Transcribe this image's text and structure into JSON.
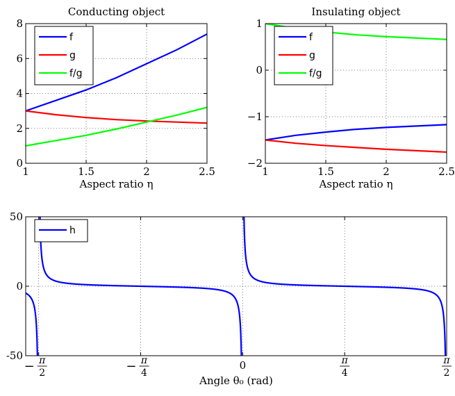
{
  "chart_data": [
    {
      "type": "line",
      "title": "Conducting object",
      "xlabel": "Aspect ratio η",
      "ylabel": "",
      "xlim": [
        1,
        2.5
      ],
      "ylim": [
        0,
        8
      ],
      "xticks": [
        1,
        1.5,
        2,
        2.5
      ],
      "xtick_labels": [
        "1",
        "1.5",
        "2",
        "2.5"
      ],
      "yticks": [
        0,
        2,
        4,
        6,
        8
      ],
      "ytick_labels": [
        "0",
        "2",
        "4",
        "6",
        "8"
      ],
      "grid": true,
      "legend_position": "top-left",
      "series": [
        {
          "name": "f",
          "color": "#0000ff",
          "x": [
            1,
            1.25,
            1.5,
            1.75,
            2,
            2.25,
            2.5
          ],
          "y": [
            3.0,
            3.6,
            4.2,
            4.9,
            5.7,
            6.5,
            7.4
          ]
        },
        {
          "name": "g",
          "color": "#ff0000",
          "x": [
            1,
            1.25,
            1.5,
            1.75,
            2,
            2.25,
            2.5
          ],
          "y": [
            3.0,
            2.78,
            2.62,
            2.5,
            2.42,
            2.36,
            2.3
          ]
        },
        {
          "name": "f/g",
          "color": "#00ff00",
          "x": [
            1,
            1.25,
            1.5,
            1.75,
            2,
            2.25,
            2.5
          ],
          "y": [
            1.0,
            1.3,
            1.6,
            1.96,
            2.36,
            2.76,
            3.2
          ]
        }
      ]
    },
    {
      "type": "line",
      "title": "Insulating object",
      "xlabel": "Aspect ratio η",
      "ylabel": "",
      "xlim": [
        1,
        2.5
      ],
      "ylim": [
        -2,
        1
      ],
      "xticks": [
        1,
        1.5,
        2,
        2.5
      ],
      "xtick_labels": [
        "1",
        "1.5",
        "2",
        "2.5"
      ],
      "yticks": [
        -2,
        -1,
        0,
        1
      ],
      "ytick_labels": [
        "−2",
        "−1",
        "0",
        "1"
      ],
      "grid": true,
      "legend_position": "top-left",
      "series": [
        {
          "name": "f",
          "color": "#0000ff",
          "x": [
            1,
            1.25,
            1.5,
            1.75,
            2,
            2.25,
            2.5
          ],
          "y": [
            -1.5,
            -1.4,
            -1.33,
            -1.27,
            -1.23,
            -1.2,
            -1.17
          ]
        },
        {
          "name": "g",
          "color": "#ff0000",
          "x": [
            1,
            1.25,
            1.5,
            1.75,
            2,
            2.25,
            2.5
          ],
          "y": [
            -1.5,
            -1.57,
            -1.62,
            -1.66,
            -1.7,
            -1.73,
            -1.76
          ]
        },
        {
          "name": "f/g",
          "color": "#00ff00",
          "x": [
            1,
            1.25,
            1.5,
            1.75,
            2,
            2.25,
            2.5
          ],
          "y": [
            1.0,
            0.9,
            0.82,
            0.76,
            0.72,
            0.69,
            0.66
          ]
        }
      ]
    },
    {
      "type": "line",
      "title": "",
      "xlabel": "Angle θ₀ (rad)",
      "ylabel": "",
      "xlim": [
        -1.6708,
        1.5708
      ],
      "ylim": [
        -50,
        50
      ],
      "xticks": [
        -1.5708,
        -0.7854,
        0,
        0.7854,
        1.5708
      ],
      "xtick_labels": [
        "−π/2",
        "−π/4",
        "0",
        "π/4",
        "π/2"
      ],
      "yticks": [
        -50,
        0,
        50
      ],
      "ytick_labels": [
        "-50",
        "0",
        "50"
      ],
      "grid": true,
      "legend_position": "top-left",
      "series": [
        {
          "name": "h",
          "color": "#0000ff",
          "function": "cot(2θ)",
          "period": 1.5708,
          "asymptotes": [
            -1.5708,
            0,
            1.5708
          ]
        }
      ]
    }
  ]
}
